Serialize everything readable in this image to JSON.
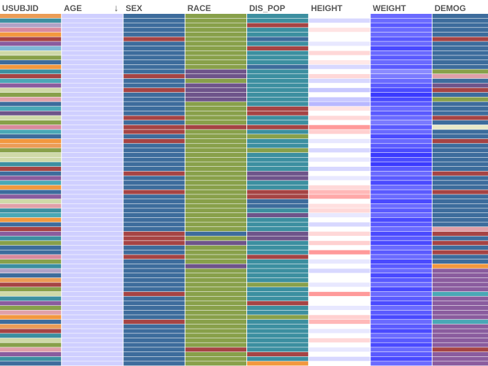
{
  "chart_data": {
    "type": "heatmap",
    "columns": [
      {
        "name": "USUBJID",
        "sorted": false
      },
      {
        "name": "AGE",
        "sorted": true,
        "sort_direction": "descending"
      },
      {
        "name": "SEX",
        "sorted": false
      },
      {
        "name": "RACE",
        "sorted": false
      },
      {
        "name": "DIS_POP",
        "sorted": false
      },
      {
        "name": "HEIGHT",
        "sorted": false
      },
      {
        "name": "WEIGHT",
        "sorted": false
      },
      {
        "name": "DEMOG",
        "sorted": false
      }
    ],
    "sort_indicator": "↓",
    "row_count": 76,
    "cell_colors": [
      [
        "#eb9c56",
        "#cfcfff",
        "#3d6c9c",
        "#88a04a",
        "#3c8fa0",
        "#ffffff",
        "#6a6aff",
        "#3d6c9c"
      ],
      [
        "#3c8fa0",
        "#cfcfff",
        "#3d6c9c",
        "#88a04a",
        "#3c8fa0",
        "#d8d8ff",
        "#6a6aff",
        "#3d6c9c"
      ],
      [
        "#b0a2c6",
        "#cfcfff",
        "#3d6c9c",
        "#88a04a",
        "#a64444",
        "#ffffff",
        "#5a5aff",
        "#3d6c9c"
      ],
      [
        "#d98a9d",
        "#cfcfff",
        "#3d6c9c",
        "#88a04a",
        "#3c8fa0",
        "#ffe4e4",
        "#6a6aff",
        "#3d6c9c"
      ],
      [
        "#f2983e",
        "#cfcfff",
        "#3d6c9c",
        "#88a04a",
        "#3c8fa0",
        "#ffffff",
        "#6a6aff",
        "#3d6c9c"
      ],
      [
        "#a64444",
        "#cfcfff",
        "#a64444",
        "#88a04a",
        "#3d6c9c",
        "#ffffff",
        "#5a5aff",
        "#a64444"
      ],
      [
        "#8a5c9e",
        "#cfcfff",
        "#3d6c9c",
        "#88a04a",
        "#3c8fa0",
        "#e8e8ff",
        "#6a6aff",
        "#3d6c9c"
      ],
      [
        "#7fb9d6",
        "#cfcfff",
        "#3d6c9c",
        "#88a04a",
        "#a64444",
        "#ffffff",
        "#4a4aff",
        "#3d6c9c"
      ],
      [
        "#cfd9a8",
        "#cfcfff",
        "#3d6c9c",
        "#88a04a",
        "#3c8fa0",
        "#ffd8d8",
        "#6a6aff",
        "#3d6c9c"
      ],
      [
        "#88a04a",
        "#cfcfff",
        "#3d6c9c",
        "#88a04a",
        "#3c8fa0",
        "#ffffff",
        "#5a5aff",
        "#3d6c9c"
      ],
      [
        "#3d6c9c",
        "#cfcfff",
        "#3d6c9c",
        "#88a04a",
        "#3c8fa0",
        "#ffe8e8",
        "#6a6aff",
        "#3d6c9c"
      ],
      [
        "#f2983e",
        "#cfcfff",
        "#3d6c9c",
        "#88a04a",
        "#3d6c9c",
        "#d8d8ff",
        "#5a5aff",
        "#3d6c9c"
      ],
      [
        "#3c8fa0",
        "#cfcfff",
        "#3d6c9c",
        "#6e548a",
        "#3c8fa0",
        "#ffffff",
        "#8a8aff",
        "#88a04a"
      ],
      [
        "#a64444",
        "#cfcfff",
        "#a64444",
        "#6e548a",
        "#3c8fa0",
        "#ffd8d8",
        "#7a7aff",
        "#e0a0a8"
      ],
      [
        "#4aa8b6",
        "#cfcfff",
        "#3d6c9c",
        "#88a04a",
        "#3c8fa0",
        "#d8d8ff",
        "#6a6aff",
        "#3d6c9c"
      ],
      [
        "#8a5c9e",
        "#cfcfff",
        "#3d6c9c",
        "#6e548a",
        "#3c8fa0",
        "#ffffff",
        "#5a5aff",
        "#6e548a"
      ],
      [
        "#cfd9a8",
        "#cfcfff",
        "#a64444",
        "#6e548a",
        "#3c8fa0",
        "#c8c8ff",
        "#4a4aff",
        "#a64444"
      ],
      [
        "#88a04a",
        "#cfcfff",
        "#3d6c9c",
        "#6e548a",
        "#3c8fa0",
        "#ffffff",
        "#3a3aff",
        "#3d6c9c"
      ],
      [
        "#e0a0a8",
        "#cfcfff",
        "#3d6c9c",
        "#6e548a",
        "#3c8fa0",
        "#c8c8ff",
        "#4a4aff",
        "#88a04a"
      ],
      [
        "#3d6c9c",
        "#cfcfff",
        "#3d6c9c",
        "#88a04a",
        "#3c8fa0",
        "#b8b8ff",
        "#5a5aff",
        "#3d6c9c"
      ],
      [
        "#4aa8b6",
        "#cfcfff",
        "#3d6c9c",
        "#88a04a",
        "#a64444",
        "#ffe4e4",
        "#6a6aff",
        "#3d6c9c"
      ],
      [
        "#6e548a",
        "#cfcfff",
        "#3d6c9c",
        "#88a04a",
        "#a64444",
        "#ffffff",
        "#5a5aff",
        "#3d6c9c"
      ],
      [
        "#cfd9a8",
        "#cfcfff",
        "#a64444",
        "#88a04a",
        "#3c8fa0",
        "#ffd8d8",
        "#6a6aff",
        "#a64444"
      ],
      [
        "#88a04a",
        "#cfcfff",
        "#3d6c9c",
        "#88a04a",
        "#3c8fa0",
        "#ffffff",
        "#7a7aff",
        "#3d6c9c"
      ],
      [
        "#d98a9d",
        "#cfcfff",
        "#a64444",
        "#a64444",
        "#a64444",
        "#ff9a9a",
        "#5a5aff",
        "#e8e8c8"
      ],
      [
        "#4aa8b6",
        "#cfcfff",
        "#a64444",
        "#88a04a",
        "#3c8fa0",
        "#ffd0d0",
        "#6a6aff",
        "#3d6c9c"
      ],
      [
        "#3d6c9c",
        "#cfcfff",
        "#3d6c9c",
        "#88a04a",
        "#88a04a",
        "#ffffff",
        "#4a4aff",
        "#3d6c9c"
      ],
      [
        "#f2983e",
        "#cfcfff",
        "#a64444",
        "#88a04a",
        "#3c8fa0",
        "#e8e8ff",
        "#6a6aff",
        "#a64444"
      ],
      [
        "#eb9c56",
        "#cfcfff",
        "#3d6c9c",
        "#88a04a",
        "#3c8fa0",
        "#ffffff",
        "#5a5aff",
        "#3d6c9c"
      ],
      [
        "#88a04a",
        "#cfcfff",
        "#3d6c9c",
        "#88a04a",
        "#88a04a",
        "#d8d8ff",
        "#4a4aff",
        "#3d6c9c"
      ],
      [
        "#cfd9a8",
        "#cfcfff",
        "#3d6c9c",
        "#88a04a",
        "#3c8fa0",
        "#ffffff",
        "#3a3aff",
        "#3d6c9c"
      ],
      [
        "#cfd9a8",
        "#cfcfff",
        "#3d6c9c",
        "#88a04a",
        "#3c8fa0",
        "#e8e8ff",
        "#4a4aff",
        "#3d6c9c"
      ],
      [
        "#3c8fa0",
        "#cfcfff",
        "#3d6c9c",
        "#88a04a",
        "#3c8fa0",
        "#ffffff",
        "#3a3aff",
        "#3d6c9c"
      ],
      [
        "#a64444",
        "#cfcfff",
        "#3d6c9c",
        "#88a04a",
        "#3c8fa0",
        "#d8d8ff",
        "#5a5aff",
        "#3d6c9c"
      ],
      [
        "#3d6c9c",
        "#cfcfff",
        "#a64444",
        "#88a04a",
        "#6e548a",
        "#ffffff",
        "#6a6aff",
        "#a64444"
      ],
      [
        "#8a5c9e",
        "#cfcfff",
        "#3d6c9c",
        "#88a04a",
        "#6e548a",
        "#e8e8ff",
        "#5a5aff",
        "#3d6c9c"
      ],
      [
        "#4aa8b6",
        "#cfcfff",
        "#3d6c9c",
        "#88a04a",
        "#3c8fa0",
        "#ffffff",
        "#4a4aff",
        "#3d6c9c"
      ],
      [
        "#f2983e",
        "#cfcfff",
        "#3d6c9c",
        "#88a04a",
        "#3c8fa0",
        "#ffd8d8",
        "#6a6aff",
        "#3d6c9c"
      ],
      [
        "#3d6c9c",
        "#cfcfff",
        "#a64444",
        "#88a04a",
        "#a64444",
        "#ffb8b8",
        "#5a5aff",
        "#a64444"
      ],
      [
        "#8a5c9e",
        "#cfcfff",
        "#3d6c9c",
        "#88a04a",
        "#a64444",
        "#ffa8a8",
        "#6a6aff",
        "#3d6c9c"
      ],
      [
        "#cfd9a8",
        "#cfcfff",
        "#3d6c9c",
        "#88a04a",
        "#3d6c9c",
        "#ffffff",
        "#4a4aff",
        "#3d6c9c"
      ],
      [
        "#e0a0a8",
        "#cfcfff",
        "#3d6c9c",
        "#88a04a",
        "#3d6c9c",
        "#ffe0e0",
        "#6a6aff",
        "#3d6c9c"
      ],
      [
        "#3c8fa0",
        "#cfcfff",
        "#3d6c9c",
        "#88a04a",
        "#3c8fa0",
        "#ffd8d8",
        "#5a5aff",
        "#3d6c9c"
      ],
      [
        "#4aa8b6",
        "#cfcfff",
        "#3d6c9c",
        "#88a04a",
        "#6e548a",
        "#e8e8ff",
        "#6a6aff",
        "#3d6c9c"
      ],
      [
        "#f2983e",
        "#cfcfff",
        "#3d6c9c",
        "#88a04a",
        "#3c8fa0",
        "#ffffff",
        "#4a4aff",
        "#3d6c9c"
      ],
      [
        "#3d6c9c",
        "#cfcfff",
        "#3d6c9c",
        "#88a04a",
        "#3c8fa0",
        "#d8d8ff",
        "#5a5aff",
        "#3d6c9c"
      ],
      [
        "#a64444",
        "#cfcfff",
        "#3d6c9c",
        "#88a04a",
        "#3c8fa0",
        "#ffffff",
        "#6a6aff",
        "#e0a0a8"
      ],
      [
        "#8a5c9e",
        "#cfcfff",
        "#a64444",
        "#3d6c9c",
        "#6e548a",
        "#ffd8d8",
        "#4a4aff",
        "#a64444"
      ],
      [
        "#3c8fa0",
        "#cfcfff",
        "#a64444",
        "#88a04a",
        "#6e548a",
        "#ffffff",
        "#5a5aff",
        "#3d6c9c"
      ],
      [
        "#88a04a",
        "#cfcfff",
        "#a64444",
        "#6e548a",
        "#3c8fa0",
        "#ffd0d0",
        "#4a4aff",
        "#a64444"
      ],
      [
        "#3d6c9c",
        "#cfcfff",
        "#3d6c9c",
        "#88a04a",
        "#3c8fa0",
        "#ffffff",
        "#6a6aff",
        "#3d6c9c"
      ],
      [
        "#3d6c9c",
        "#cfcfff",
        "#3d6c9c",
        "#88a04a",
        "#3c8fa0",
        "#ff9a9a",
        "#5a5aff",
        "#a64444"
      ],
      [
        "#d98a9d",
        "#cfcfff",
        "#a64444",
        "#88a04a",
        "#a64444",
        "#ffffff",
        "#6a6aff",
        "#3d6c9c"
      ],
      [
        "#88a04a",
        "#cfcfff",
        "#3d6c9c",
        "#88a04a",
        "#3c8fa0",
        "#e8e8ff",
        "#4a4aff",
        "#3d6c9c"
      ],
      [
        "#3c8fa0",
        "#cfcfff",
        "#3d6c9c",
        "#6e548a",
        "#3c8fa0",
        "#ffffff",
        "#5a5aff",
        "#f2983e"
      ],
      [
        "#b0a2c6",
        "#cfcfff",
        "#3d6c9c",
        "#88a04a",
        "#3c8fa0",
        "#d8d8ff",
        "#6a6aff",
        "#8a5c9e"
      ],
      [
        "#3d6c9c",
        "#cfcfff",
        "#3d6c9c",
        "#88a04a",
        "#3c8fa0",
        "#ffffff",
        "#4a4aff",
        "#8a5c9e"
      ],
      [
        "#eb9c56",
        "#cfcfff",
        "#3d6c9c",
        "#88a04a",
        "#3c8fa0",
        "#ffffff",
        "#5a5aff",
        "#8a5c9e"
      ],
      [
        "#a64444",
        "#cfcfff",
        "#3d6c9c",
        "#88a04a",
        "#88a04a",
        "#e8e8ff",
        "#6a6aff",
        "#8a5c9e"
      ],
      [
        "#88a04a",
        "#cfcfff",
        "#3d6c9c",
        "#88a04a",
        "#3c8fa0",
        "#ffffff",
        "#4a4aff",
        "#8a5c9e"
      ],
      [
        "#cfd9a8",
        "#cfcfff",
        "#a64444",
        "#88a04a",
        "#3c8fa0",
        "#ff9a9a",
        "#6a6aff",
        "#4aa8b6"
      ],
      [
        "#3c8fa0",
        "#cfcfff",
        "#3d6c9c",
        "#88a04a",
        "#3c8fa0",
        "#ffffff",
        "#5a5aff",
        "#8a5c9e"
      ],
      [
        "#8a5c9e",
        "#cfcfff",
        "#3d6c9c",
        "#88a04a",
        "#a64444",
        "#ffffff",
        "#4a4aff",
        "#8a5c9e"
      ],
      [
        "#88a04a",
        "#cfcfff",
        "#3d6c9c",
        "#88a04a",
        "#3c8fa0",
        "#e8e8ff",
        "#6a6aff",
        "#8a5c9e"
      ],
      [
        "#e0a0a8",
        "#cfcfff",
        "#3d6c9c",
        "#88a04a",
        "#3c8fa0",
        "#ffffff",
        "#5a5aff",
        "#8a5c9e"
      ],
      [
        "#f2983e",
        "#cfcfff",
        "#3d6c9c",
        "#88a04a",
        "#88a04a",
        "#ffd0d0",
        "#4a4aff",
        "#8a5c9e"
      ],
      [
        "#3d6c9c",
        "#cfcfff",
        "#a64444",
        "#88a04a",
        "#3c8fa0",
        "#ffb8b8",
        "#6a6aff",
        "#4aa8b6"
      ],
      [
        "#eb9c56",
        "#cfcfff",
        "#3d6c9c",
        "#88a04a",
        "#3c8fa0",
        "#ffffff",
        "#5a5aff",
        "#8a5c9e"
      ],
      [
        "#a64444",
        "#cfcfff",
        "#3d6c9c",
        "#88a04a",
        "#3c8fa0",
        "#e8e8ff",
        "#4a4aff",
        "#8a5c9e"
      ],
      [
        "#3c8fa0",
        "#cfcfff",
        "#3d6c9c",
        "#88a04a",
        "#3c8fa0",
        "#ffffff",
        "#6a6aff",
        "#8a5c9e"
      ],
      [
        "#cfd9a8",
        "#cfcfff",
        "#3d6c9c",
        "#88a04a",
        "#3c8fa0",
        "#ffd8d8",
        "#5a5aff",
        "#8a5c9e"
      ],
      [
        "#88a04a",
        "#cfcfff",
        "#3d6c9c",
        "#88a04a",
        "#3c8fa0",
        "#ffffff",
        "#4a4aff",
        "#8a5c9e"
      ],
      [
        "#e0a0a8",
        "#cfcfff",
        "#3d6c9c",
        "#a64444",
        "#3c8fa0",
        "#e8e8ff",
        "#6a6aff",
        "#a64444"
      ],
      [
        "#8a5c9e",
        "#cfcfff",
        "#3d6c9c",
        "#88a04a",
        "#a64444",
        "#ffffff",
        "#5a5aff",
        "#8a5c9e"
      ],
      [
        "#3c8fa0",
        "#cfcfff",
        "#3d6c9c",
        "#88a04a",
        "#3c8fa0",
        "#d8d8ff",
        "#4a4aff",
        "#8a5c9e"
      ],
      [
        "#3d6c9c",
        "#cfcfff",
        "#3d6c9c",
        "#88a04a",
        "#f2983e",
        "#ffffff",
        "#6a6aff",
        "#8a5c9e"
      ]
    ]
  },
  "colors": {
    "header_text": "#555555",
    "background": "#ffffff",
    "row_divider": "#ffffff"
  }
}
